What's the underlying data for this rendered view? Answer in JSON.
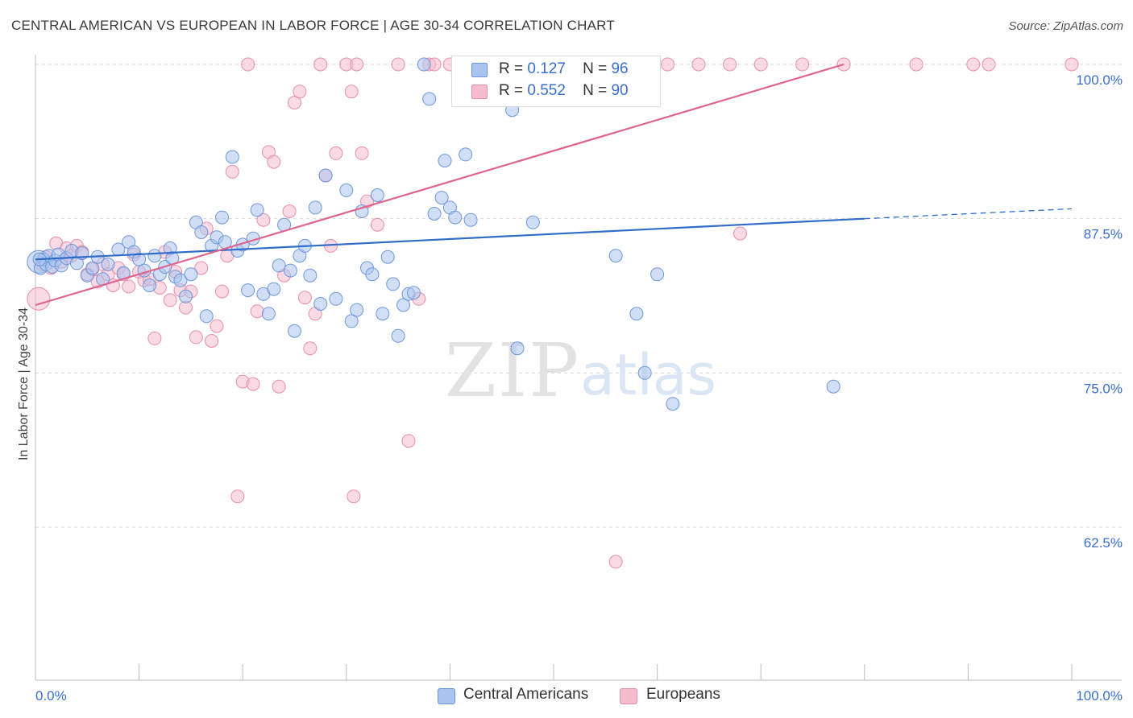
{
  "header": {
    "title": "CENTRAL AMERICAN VS EUROPEAN IN LABOR FORCE | AGE 30-34 CORRELATION CHART",
    "source": "Source: ZipAtlas.com"
  },
  "watermark": {
    "zip": "ZIP",
    "atlas": "atlas"
  },
  "legend": {
    "rows": [
      {
        "r_label": "R =",
        "r_value": "0.127",
        "n_label": "N =",
        "n_value": "96"
      },
      {
        "r_label": "R =",
        "r_value": "0.552",
        "n_label": "N =",
        "n_value": "90"
      }
    ]
  },
  "bottom_legend": {
    "series1": "Central Americans",
    "series2": "Europeans"
  },
  "colors": {
    "blue_fill": "#a9c4ee",
    "blue_stroke": "#6f97d8",
    "blue_line": "#2f6dc9",
    "pink_fill": "#f5bccd",
    "pink_stroke": "#e88fab",
    "pink_line": "#e0648b",
    "tick_label": "#3a6fd0",
    "grid": "#d8d8d8"
  },
  "chart_data": {
    "type": "scatter",
    "title": "CENTRAL AMERICAN VS EUROPEAN IN LABOR FORCE | AGE 30-34 CORRELATION CHART",
    "xlabel": "",
    "ylabel": "In Labor Force | Age 30-34",
    "xlim": [
      0,
      100
    ],
    "ylim": [
      50,
      101.5
    ],
    "x_tick_labels": [
      "0.0%",
      "100.0%"
    ],
    "y_ticks": [
      62.5,
      75.0,
      87.5,
      100.0
    ],
    "y_tick_labels": [
      "62.5%",
      "75.0%",
      "87.5%",
      "100.0%"
    ],
    "grid": true,
    "legend_position": "top-center",
    "series": [
      {
        "name": "Central Americans",
        "color": "#a9c4ee",
        "trend": {
          "x": [
            0,
            80
          ],
          "y": [
            84.2,
            87.5
          ],
          "dashed_to": [
            100,
            88.3
          ]
        },
        "points": [
          [
            0.3,
            84.0
          ],
          [
            0.5,
            83.5
          ],
          [
            0.8,
            84.2
          ],
          [
            1.0,
            83.8
          ],
          [
            1.3,
            84.5
          ],
          [
            1.6,
            83.6
          ],
          [
            1.9,
            84.1
          ],
          [
            2.2,
            84.6
          ],
          [
            2.5,
            83.7
          ],
          [
            3.0,
            84.3
          ],
          [
            3.5,
            84.9
          ],
          [
            4.0,
            83.9
          ],
          [
            4.5,
            84.7
          ],
          [
            5.0,
            82.9
          ],
          [
            5.5,
            83.5
          ],
          [
            6.0,
            84.4
          ],
          [
            6.5,
            82.6
          ],
          [
            7.0,
            83.8
          ],
          [
            8.0,
            85.0
          ],
          [
            8.5,
            83.1
          ],
          [
            9.0,
            85.6
          ],
          [
            9.5,
            84.8
          ],
          [
            10.0,
            84.2
          ],
          [
            10.5,
            83.3
          ],
          [
            11.0,
            82.1
          ],
          [
            11.5,
            84.5
          ],
          [
            12.0,
            83.0
          ],
          [
            12.5,
            83.6
          ],
          [
            13.0,
            85.1
          ],
          [
            13.5,
            82.8
          ],
          [
            13.2,
            84.3
          ],
          [
            14.0,
            82.5
          ],
          [
            14.5,
            81.2
          ],
          [
            15.0,
            83.0
          ],
          [
            15.5,
            87.2
          ],
          [
            16.0,
            86.4
          ],
          [
            16.5,
            79.6
          ],
          [
            17.0,
            85.3
          ],
          [
            17.5,
            86.0
          ],
          [
            18.0,
            87.6
          ],
          [
            18.3,
            85.6
          ],
          [
            19.0,
            92.5
          ],
          [
            19.5,
            84.9
          ],
          [
            20.0,
            85.4
          ],
          [
            20.5,
            81.7
          ],
          [
            21.0,
            85.9
          ],
          [
            21.4,
            88.2
          ],
          [
            22.0,
            81.4
          ],
          [
            22.5,
            79.8
          ],
          [
            23.0,
            81.8
          ],
          [
            23.5,
            83.7
          ],
          [
            24.0,
            87.0
          ],
          [
            24.6,
            83.3
          ],
          [
            25.0,
            78.4
          ],
          [
            25.5,
            84.5
          ],
          [
            26.0,
            85.3
          ],
          [
            26.5,
            82.9
          ],
          [
            27.0,
            88.4
          ],
          [
            27.5,
            80.6
          ],
          [
            28.0,
            91.0
          ],
          [
            29.0,
            81.0
          ],
          [
            30.0,
            89.8
          ],
          [
            30.5,
            79.2
          ],
          [
            31.0,
            80.1
          ],
          [
            31.5,
            88.1
          ],
          [
            32.0,
            83.5
          ],
          [
            32.5,
            83.0
          ],
          [
            33.0,
            89.4
          ],
          [
            33.5,
            79.8
          ],
          [
            34.0,
            84.4
          ],
          [
            34.5,
            82.2
          ],
          [
            35.0,
            78.0
          ],
          [
            35.5,
            80.5
          ],
          [
            36.0,
            81.4
          ],
          [
            36.5,
            81.5
          ],
          [
            37.5,
            100.0
          ],
          [
            38.0,
            97.2
          ],
          [
            38.5,
            87.9
          ],
          [
            39.5,
            92.2
          ],
          [
            39.2,
            89.2
          ],
          [
            40.0,
            88.4
          ],
          [
            40.5,
            87.6
          ],
          [
            41.5,
            92.7
          ],
          [
            42.0,
            87.4
          ],
          [
            45.5,
            100.0
          ],
          [
            46.0,
            96.3
          ],
          [
            46.5,
            77.0
          ],
          [
            48.0,
            87.2
          ],
          [
            55.0,
            100.0
          ],
          [
            56.0,
            84.5
          ],
          [
            58.0,
            79.8
          ],
          [
            58.8,
            75.0
          ],
          [
            60.0,
            83.0
          ],
          [
            61.5,
            72.5
          ],
          [
            77.0,
            73.9
          ],
          [
            0.4,
            84.2
          ]
        ]
      },
      {
        "name": "Europeans",
        "color": "#f5bccd",
        "trend": {
          "x": [
            0,
            78
          ],
          "y": [
            80.5,
            100.0
          ]
        },
        "points": [
          [
            0.3,
            81.0
          ],
          [
            0.6,
            83.8
          ],
          [
            1.0,
            84.4
          ],
          [
            1.5,
            83.5
          ],
          [
            2.0,
            85.5
          ],
          [
            2.5,
            84.0
          ],
          [
            3.0,
            85.1
          ],
          [
            3.5,
            84.5
          ],
          [
            4.0,
            85.3
          ],
          [
            4.5,
            84.8
          ],
          [
            5.0,
            83.0
          ],
          [
            5.5,
            83.4
          ],
          [
            6.0,
            82.4
          ],
          [
            6.5,
            83.8
          ],
          [
            7.0,
            83.0
          ],
          [
            7.5,
            82.1
          ],
          [
            8.0,
            83.5
          ],
          [
            8.5,
            83.0
          ],
          [
            9.0,
            82.0
          ],
          [
            9.5,
            84.6
          ],
          [
            10.0,
            83.2
          ],
          [
            10.5,
            82.5
          ],
          [
            11.0,
            82.6
          ],
          [
            11.5,
            77.8
          ],
          [
            12.0,
            81.9
          ],
          [
            12.5,
            84.8
          ],
          [
            13.0,
            80.9
          ],
          [
            13.5,
            83.2
          ],
          [
            14.0,
            81.7
          ],
          [
            14.5,
            80.3
          ],
          [
            15.0,
            81.6
          ],
          [
            15.5,
            77.9
          ],
          [
            16.0,
            83.5
          ],
          [
            16.5,
            86.7
          ],
          [
            17.0,
            77.6
          ],
          [
            17.5,
            78.8
          ],
          [
            18.0,
            81.6
          ],
          [
            18.5,
            84.5
          ],
          [
            19.0,
            91.3
          ],
          [
            19.5,
            65.0
          ],
          [
            20.0,
            74.3
          ],
          [
            20.5,
            100.0
          ],
          [
            21.0,
            74.1
          ],
          [
            21.4,
            80.0
          ],
          [
            22.0,
            87.4
          ],
          [
            22.5,
            92.9
          ],
          [
            23.0,
            92.1
          ],
          [
            23.5,
            73.9
          ],
          [
            24.0,
            82.9
          ],
          [
            24.5,
            88.1
          ],
          [
            25.0,
            96.9
          ],
          [
            25.5,
            97.8
          ],
          [
            26.0,
            81.1
          ],
          [
            26.5,
            77.0
          ],
          [
            27.0,
            79.8
          ],
          [
            27.5,
            100.0
          ],
          [
            28.0,
            91.0
          ],
          [
            28.5,
            85.3
          ],
          [
            29.0,
            92.8
          ],
          [
            30.0,
            100.0
          ],
          [
            30.5,
            97.8
          ],
          [
            30.7,
            65.0
          ],
          [
            31.0,
            100.0
          ],
          [
            31.5,
            92.8
          ],
          [
            32.0,
            88.9
          ],
          [
            33.0,
            87.0
          ],
          [
            35.0,
            100.0
          ],
          [
            36.0,
            69.5
          ],
          [
            37.0,
            81.0
          ],
          [
            38.0,
            100.0
          ],
          [
            38.5,
            100.0
          ],
          [
            40.0,
            100.0
          ],
          [
            43.0,
            100.0
          ],
          [
            44.5,
            100.0
          ],
          [
            46.0,
            100.0
          ],
          [
            48.0,
            100.0
          ],
          [
            50.0,
            100.0
          ],
          [
            56.0,
            59.7
          ],
          [
            59.0,
            100.0
          ],
          [
            61.0,
            100.0
          ],
          [
            64.0,
            100.0
          ],
          [
            67.0,
            100.0
          ],
          [
            70.0,
            100.0
          ],
          [
            74.0,
            100.0
          ],
          [
            78.0,
            100.0
          ],
          [
            85.0,
            100.0
          ],
          [
            90.5,
            100.0
          ],
          [
            92.0,
            100.0
          ],
          [
            100.0,
            100.0
          ],
          [
            68.0,
            86.3
          ]
        ]
      }
    ]
  }
}
